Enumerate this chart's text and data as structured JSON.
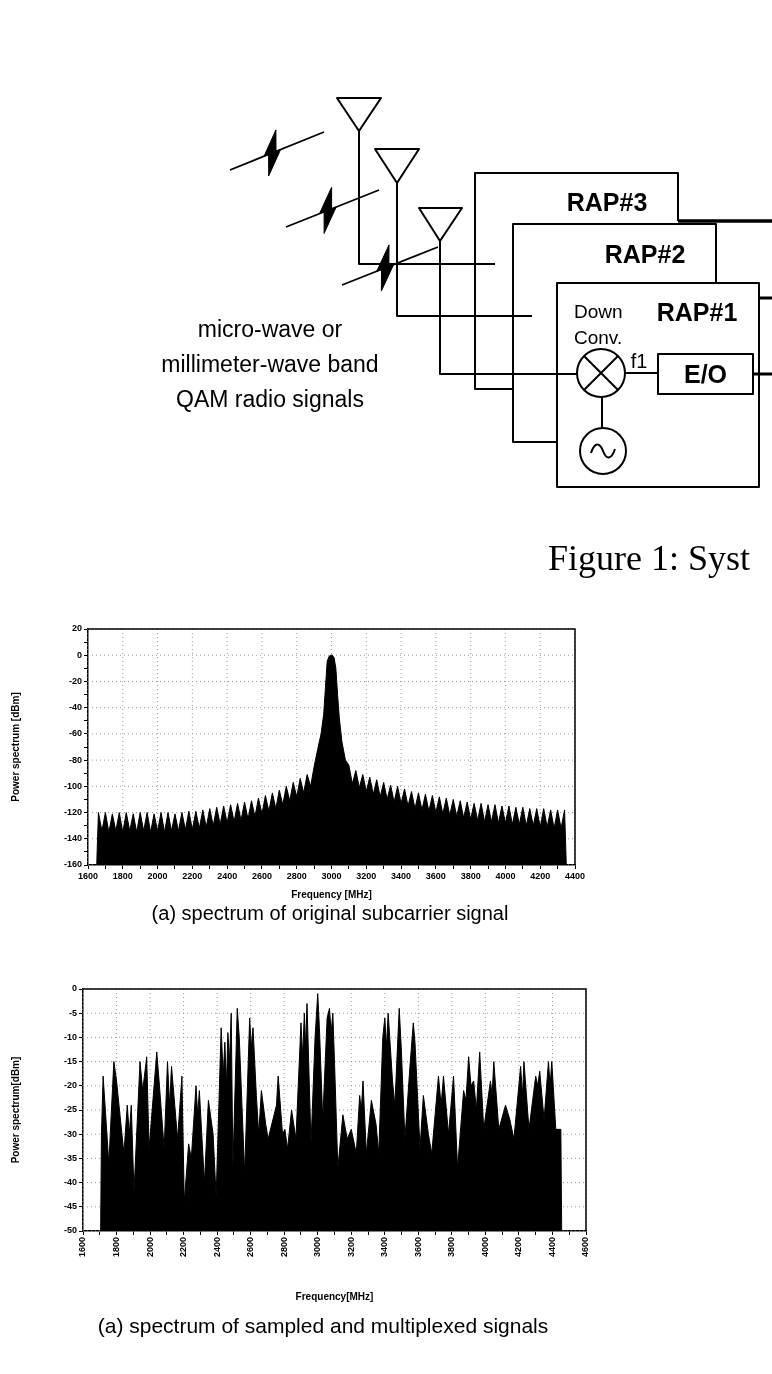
{
  "chart_data": [
    {
      "type": "other",
      "annotations": [
        "RAP#3",
        "RAP#2",
        "RAP#1",
        "Down Conv.",
        "f1",
        "E/O",
        "micro-wave or millimeter-wave band QAM radio signals",
        "Figure 1: Syst"
      ]
    },
    {
      "type": "area",
      "xlabel": "Frequency [MHz]",
      "ylabel": "Power spectrum [dBm]",
      "annotations": [
        "(a) spectrum of original subcarrier signal"
      ],
      "grid": true,
      "color": "#000000",
      "xlim": [
        1600,
        4400
      ],
      "xticks": [
        1600,
        {
          "value": 1700,
          "label": null
        },
        1800,
        {
          "value": 1900,
          "label": null
        },
        2000,
        {
          "value": 2100,
          "label": null
        },
        2200,
        {
          "value": 2300,
          "label": null
        },
        2400,
        {
          "value": 2500,
          "label": null
        },
        2600,
        {
          "value": 2700,
          "label": null
        },
        2800,
        {
          "value": 2900,
          "label": null
        },
        3000,
        {
          "value": 3100,
          "label": null
        },
        3200,
        {
          "value": 3300,
          "label": null
        },
        3400,
        {
          "value": 3500,
          "label": null
        },
        3600,
        {
          "value": 3700,
          "label": null
        },
        3800,
        {
          "value": 3900,
          "label": null
        },
        4000,
        {
          "value": 4100,
          "label": null
        },
        4200,
        {
          "value": 4300,
          "label": null
        },
        4400
      ],
      "ylim": [
        -160,
        20
      ],
      "yticks": [
        -160,
        {
          "value": -150,
          "label": null
        },
        -140,
        {
          "value": -130,
          "label": null
        },
        -120,
        {
          "value": -110,
          "label": null
        },
        -100,
        {
          "value": -90,
          "label": null
        },
        -80,
        {
          "value": -70,
          "label": null
        },
        -60,
        {
          "value": -50,
          "label": null
        },
        -40,
        {
          "value": -30,
          "label": null
        },
        -20,
        {
          "value": -10,
          "label": null
        },
        0,
        {
          "value": 10,
          "label": null
        },
        20
      ],
      "x": [
        1650,
        1660,
        1680,
        1700,
        1720,
        1740,
        1760,
        1780,
        1800,
        1820,
        1840,
        1860,
        1880,
        1900,
        1920,
        1940,
        1960,
        1980,
        2000,
        2020,
        2040,
        2060,
        2080,
        2100,
        2120,
        2140,
        2160,
        2180,
        2200,
        2220,
        2240,
        2260,
        2280,
        2300,
        2320,
        2340,
        2360,
        2380,
        2400,
        2420,
        2440,
        2460,
        2480,
        2500,
        2520,
        2540,
        2560,
        2580,
        2600,
        2620,
        2640,
        2660,
        2680,
        2700,
        2720,
        2740,
        2760,
        2780,
        2800,
        2820,
        2840,
        2860,
        2880,
        2900,
        2920,
        2940,
        2955,
        2965,
        2975,
        2985,
        2995,
        3005,
        3015,
        3025,
        3035,
        3045,
        3060,
        3080,
        3100,
        3120,
        3140,
        3160,
        3180,
        3200,
        3220,
        3240,
        3260,
        3280,
        3300,
        3320,
        3340,
        3360,
        3380,
        3400,
        3420,
        3440,
        3460,
        3480,
        3500,
        3520,
        3540,
        3560,
        3580,
        3600,
        3620,
        3640,
        3660,
        3680,
        3700,
        3720,
        3740,
        3760,
        3780,
        3800,
        3820,
        3840,
        3860,
        3880,
        3900,
        3920,
        3940,
        3960,
        3980,
        4000,
        4020,
        4040,
        4060,
        4080,
        4100,
        4120,
        4140,
        4160,
        4180,
        4200,
        4220,
        4240,
        4260,
        4280,
        4300,
        4320,
        4340,
        4350
      ],
      "values": [
        -160,
        -120,
        -134,
        -120,
        -135,
        -121,
        -134,
        -120,
        -135,
        -120,
        -134,
        -121,
        -135,
        -120,
        -134,
        -120,
        -135,
        -121,
        -134,
        -120,
        -135,
        -120,
        -134,
        -121,
        -134,
        -120,
        -133,
        -119,
        -133,
        -119,
        -132,
        -118,
        -131,
        -117,
        -130,
        -116,
        -129,
        -115,
        -128,
        -114,
        -127,
        -113,
        -126,
        -112,
        -125,
        -111,
        -123,
        -109,
        -121,
        -107,
        -119,
        -105,
        -117,
        -103,
        -114,
        -100,
        -111,
        -97,
        -108,
        -94,
        -105,
        -91,
        -100,
        -85,
        -72,
        -60,
        -45,
        -25,
        -5,
        -1,
        0,
        0,
        -2,
        -10,
        -30,
        -48,
        -66,
        -80,
        -84,
        -98,
        -88,
        -101,
        -91,
        -104,
        -93,
        -106,
        -95,
        -108,
        -97,
        -110,
        -99,
        -112,
        -100,
        -113,
        -102,
        -115,
        -104,
        -117,
        -105,
        -118,
        -106,
        -119,
        -107,
        -120,
        -108,
        -121,
        -109,
        -122,
        -110,
        -123,
        -111,
        -124,
        -112,
        -125,
        -113,
        -126,
        -113,
        -127,
        -114,
        -127,
        -114,
        -128,
        -115,
        -128,
        -115,
        -129,
        -116,
        -129,
        -116,
        -130,
        -117,
        -130,
        -117,
        -131,
        -117,
        -131,
        -118,
        -132,
        -118,
        -132,
        -118,
        -160
      ]
    },
    {
      "type": "area",
      "xlabel": "Frequency[MHz]",
      "ylabel": "Power spectrum[dBm]",
      "annotations": [
        "(a) spectrum of sampled and multiplexed signals"
      ],
      "grid": true,
      "color": "#000000",
      "xlim": [
        1600,
        4600
      ],
      "xticks": [
        1600,
        {
          "value": 1700,
          "label": null
        },
        1800,
        {
          "value": 1900,
          "label": null
        },
        2000,
        {
          "value": 2100,
          "label": null
        },
        2200,
        {
          "value": 2300,
          "label": null
        },
        2400,
        {
          "value": 2500,
          "label": null
        },
        2600,
        {
          "value": 2700,
          "label": null
        },
        2800,
        {
          "value": 2900,
          "label": null
        },
        3000,
        {
          "value": 3100,
          "label": null
        },
        3200,
        {
          "value": 3300,
          "label": null
        },
        3400,
        {
          "value": 3500,
          "label": null
        },
        3600,
        {
          "value": 3700,
          "label": null
        },
        3800,
        {
          "value": 3900,
          "label": null
        },
        4000,
        {
          "value": 4100,
          "label": null
        },
        4200,
        {
          "value": 4300,
          "label": null
        },
        4400,
        {
          "value": 4500,
          "label": null
        },
        4600
      ],
      "ylim": [
        -50,
        0
      ],
      "yticks": [
        -50,
        -45,
        -40,
        -35,
        -30,
        -25,
        -20,
        -15,
        -10,
        -5,
        0
      ],
      "x": [
        1705,
        1710,
        1720,
        1754,
        1784,
        1800,
        1844,
        1864,
        1876,
        1888,
        1904,
        1940,
        1956,
        1980,
        1994,
        2024,
        2040,
        2056,
        2084,
        2104,
        2116,
        2128,
        2164,
        2190,
        2204,
        2230,
        2246,
        2274,
        2284,
        2294,
        2324,
        2348,
        2376,
        2394,
        2424,
        2436,
        2446,
        2456,
        2464,
        2474,
        2484,
        2494,
        2520,
        2532,
        2564,
        2594,
        2604,
        2614,
        2634,
        2648,
        2664,
        2690,
        2704,
        2754,
        2764,
        2790,
        2804,
        2820,
        2844,
        2870,
        2900,
        2910,
        2920,
        2928,
        2936,
        2960,
        2984,
        3000,
        3010,
        3030,
        3056,
        3070,
        3080,
        3090,
        3100,
        3120,
        3150,
        3176,
        3200,
        3230,
        3250,
        3260,
        3270,
        3290,
        3320,
        3348,
        3364,
        3388,
        3400,
        3410,
        3420,
        3446,
        3460,
        3486,
        3498,
        3520,
        3550,
        3570,
        3580,
        3610,
        3630,
        3660,
        3680,
        3720,
        3736,
        3750,
        3780,
        3810,
        3834,
        3870,
        3884,
        3900,
        3914,
        3930,
        3946,
        3966,
        3990,
        4030,
        4040,
        4050,
        4080,
        4120,
        4146,
        4170,
        4210,
        4222,
        4230,
        4260,
        4300,
        4312,
        4324,
        4350,
        4376,
        4386,
        4396,
        4420,
        4450,
        4455
      ],
      "values": [
        -50,
        -30,
        -18,
        -36,
        -15,
        -19,
        -34,
        -24,
        -30,
        -24,
        -42,
        -15,
        -21,
        -14,
        -33,
        -20,
        -13,
        -20,
        -33,
        -15,
        -24,
        -16,
        -31,
        -18,
        -44,
        -32,
        -35,
        -20,
        -26,
        -21,
        -40,
        -23,
        -30,
        -43,
        -8,
        -18,
        -11,
        -20,
        -9,
        -15,
        -5,
        -37,
        -4,
        -10,
        -38,
        -6,
        -12,
        -8,
        -22,
        -30,
        -21,
        -28,
        -31,
        -24,
        -18,
        -30,
        -29,
        -33,
        -25,
        -31,
        -7,
        -14,
        -5,
        -12,
        -3,
        -32,
        -10,
        -1,
        -8,
        -27,
        -6,
        -4,
        -9,
        -5,
        -15,
        -37,
        -26,
        -31,
        -29,
        -34,
        -22,
        -25,
        -19,
        -34,
        -23,
        -28,
        -34,
        -10,
        -6,
        -12,
        -5,
        -19,
        -24,
        -4,
        -12,
        -31,
        -16,
        -7,
        -11,
        -33,
        -22,
        -30,
        -34,
        -18,
        -24,
        -18,
        -30,
        -18,
        -37,
        -21,
        -23,
        -14,
        -20,
        -19,
        -25,
        -13,
        -29,
        -19,
        -22,
        -15,
        -29,
        -24,
        -27,
        -31,
        -16,
        -22,
        -15,
        -29,
        -18,
        -20,
        -17,
        -27,
        -15,
        -20,
        -15,
        -29,
        -29,
        -50
      ]
    }
  ]
}
